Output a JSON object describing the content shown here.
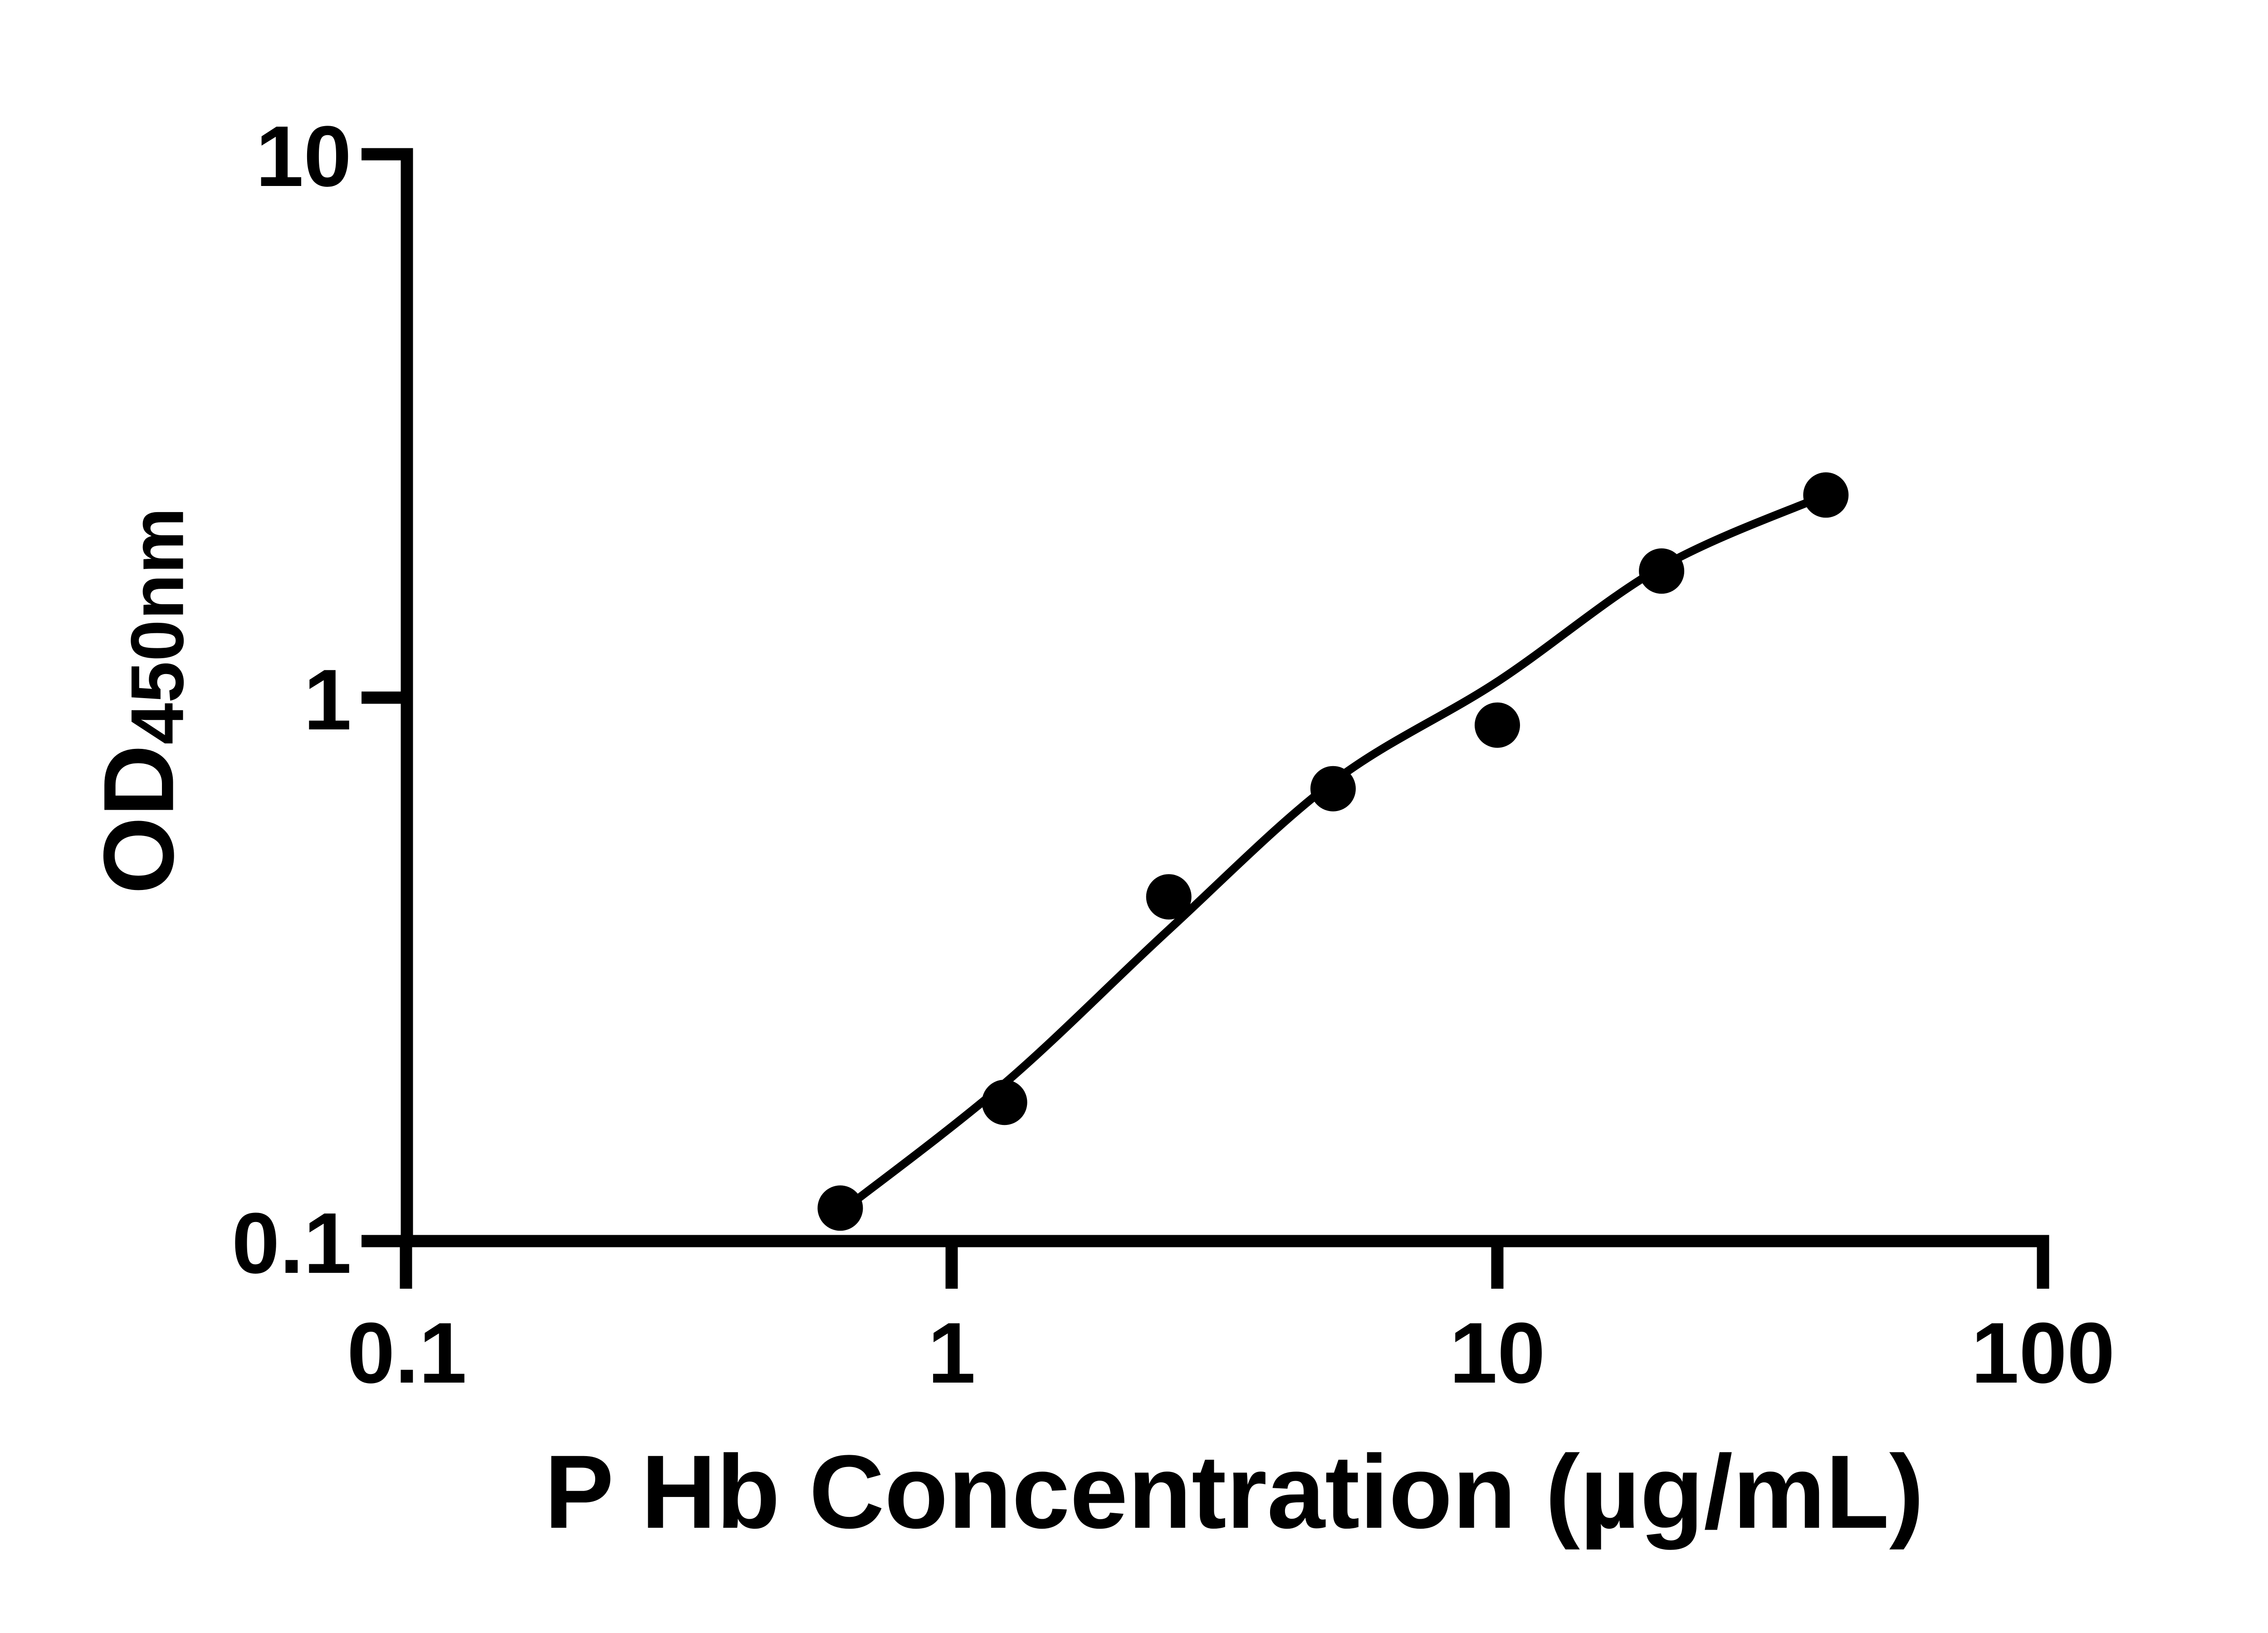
{
  "figure": {
    "background": "#ffffff",
    "ink_color": "#000000"
  },
  "chart_data": {
    "type": "scatter",
    "title": "",
    "xlabel": "P Hb Concentration (µg/mL)",
    "ylabel_main": "OD",
    "ylabel_subscript": "450nm",
    "x_scale": "log10",
    "y_scale": "log10",
    "xlim": [
      0.1,
      100
    ],
    "ylim": [
      0.1,
      10
    ],
    "x_tick_labels": [
      "0.1",
      "1",
      "10",
      "100"
    ],
    "x_tick_values": [
      0.1,
      1,
      10,
      100
    ],
    "y_tick_labels": [
      "10",
      "1",
      "0.1"
    ],
    "y_tick_values": [
      10,
      1,
      0.1
    ],
    "grid": false,
    "legend": false,
    "series": [
      {
        "name": "P Hb standard",
        "marker": "filled-circle",
        "color": "#000000",
        "x": [
          0.625,
          1.25,
          2.5,
          5,
          10,
          20,
          40
        ],
        "y": [
          0.115,
          0.18,
          0.43,
          0.68,
          0.89,
          1.71,
          2.36
        ]
      }
    ],
    "fit_curve": {
      "name": "fitted-standard-curve",
      "color": "#000000",
      "x": [
        0.625,
        1.25,
        2.5,
        5,
        10,
        20,
        40
      ],
      "y": [
        0.113,
        0.195,
        0.374,
        0.7,
        1.07,
        1.74,
        2.36
      ]
    }
  }
}
